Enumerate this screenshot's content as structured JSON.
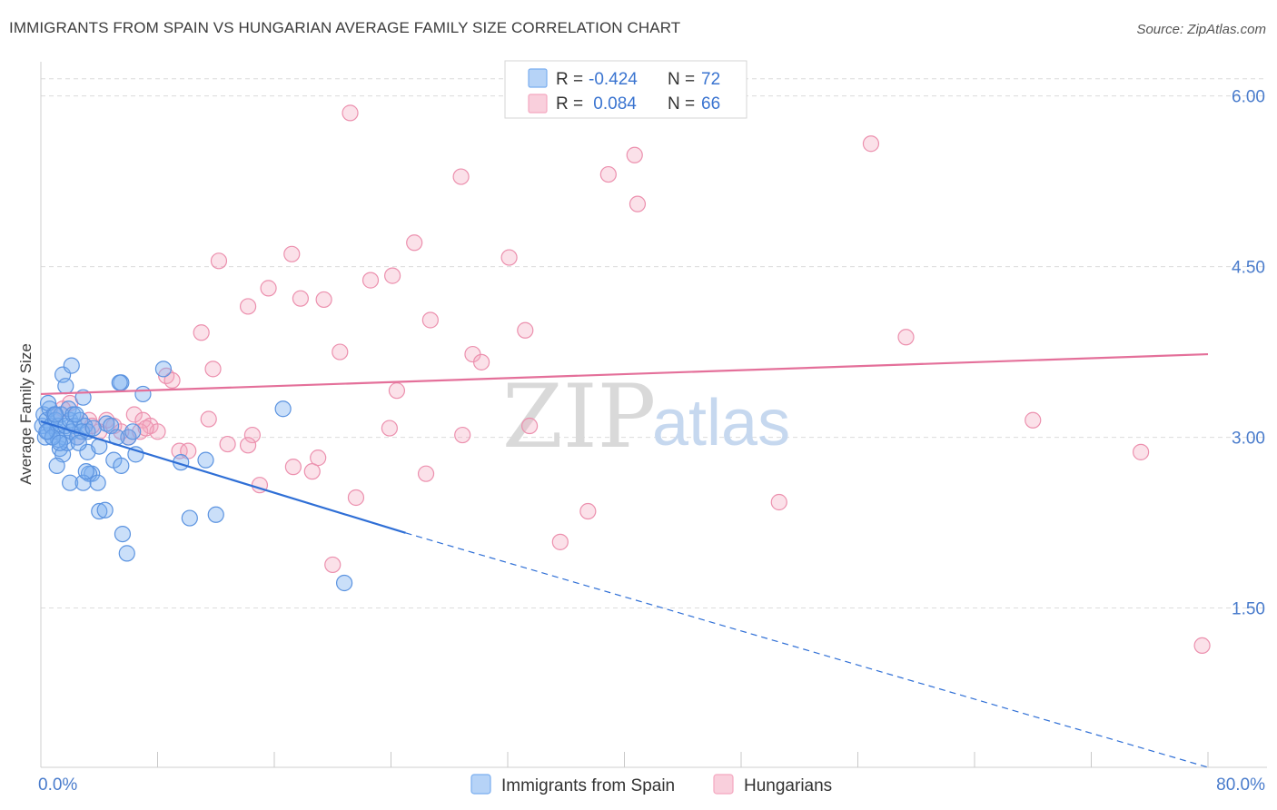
{
  "title": "IMMIGRANTS FROM SPAIN VS HUNGARIAN AVERAGE FAMILY SIZE CORRELATION CHART",
  "source": "Source: ZipAtlas.com",
  "watermark": {
    "zip": "ZIP",
    "atlas": "atlas"
  },
  "legend": {
    "r_label": "R =",
    "n_label": "N =",
    "rows": [
      {
        "r": "-0.424",
        "n": "72",
        "color": "#7aaef0"
      },
      {
        "r": " 0.084",
        "n": "66",
        "color": "#f4a8c0"
      }
    ]
  },
  "chart_data": {
    "type": "scatter",
    "title": "IMMIGRANTS FROM SPAIN VS HUNGARIAN AVERAGE FAMILY SIZE CORRELATION CHART",
    "xlabel": "",
    "ylabel": "Average Family Size",
    "xlim": [
      0,
      80
    ],
    "ylim": [
      0.1,
      6.3
    ],
    "x_tick_labels": [
      "0.0%",
      "80.0%"
    ],
    "y_ticks": [
      1.5,
      3.0,
      4.5,
      6.0
    ],
    "y_tick_labels": [
      "1.50",
      "3.00",
      "4.50",
      "6.00"
    ],
    "grid": "horizontal dashed",
    "legend_position": "top-center",
    "series": [
      {
        "name": "Immigrants from Spain",
        "color": "#7aaef0",
        "line_color": "#2f6fd6",
        "trend": {
          "x0": 0,
          "y0": 3.14,
          "x1": 25,
          "y1": 2.16,
          "dash_to_x": 80,
          "dash_to_y": 0.1
        },
        "points": [
          [
            0.1,
            3.1
          ],
          [
            0.2,
            3.2
          ],
          [
            0.3,
            3.0
          ],
          [
            0.4,
            3.15
          ],
          [
            0.5,
            3.05
          ],
          [
            0.6,
            3.25
          ],
          [
            0.7,
            3.1
          ],
          [
            0.8,
            3.0
          ],
          [
            0.9,
            3.2
          ],
          [
            1.0,
            3.15
          ],
          [
            1.1,
            3.05
          ],
          [
            1.2,
            3.1
          ],
          [
            1.3,
            2.9
          ],
          [
            1.4,
            3.2
          ],
          [
            1.5,
            2.85
          ],
          [
            1.6,
            3.0
          ],
          [
            1.7,
            3.1
          ],
          [
            1.8,
            2.95
          ],
          [
            1.9,
            3.25
          ],
          [
            2.0,
            3.15
          ],
          [
            2.1,
            3.05
          ],
          [
            2.2,
            3.2
          ],
          [
            2.3,
            3.1
          ],
          [
            2.5,
            3.0
          ],
          [
            2.7,
            3.15
          ],
          [
            3.0,
            3.1
          ],
          [
            3.2,
            3.05
          ],
          [
            1.5,
            3.55
          ],
          [
            1.7,
            3.45
          ],
          [
            2.1,
            3.63
          ],
          [
            2.9,
            3.35
          ],
          [
            3.2,
            2.87
          ],
          [
            3.5,
            2.68
          ],
          [
            4.0,
            2.92
          ],
          [
            4.5,
            3.12
          ],
          [
            5.0,
            2.8
          ],
          [
            5.5,
            2.75
          ],
          [
            6.0,
            3.0
          ],
          [
            6.5,
            2.85
          ],
          [
            7.0,
            3.38
          ],
          [
            8.4,
            3.6
          ],
          [
            9.6,
            2.78
          ],
          [
            11.3,
            2.8
          ],
          [
            16.6,
            3.25
          ],
          [
            5.5,
            3.48
          ],
          [
            5.4,
            3.48
          ],
          [
            3.3,
            2.68
          ],
          [
            2.0,
            2.6
          ],
          [
            2.9,
            2.6
          ],
          [
            3.9,
            2.6
          ],
          [
            4.0,
            2.35
          ],
          [
            4.4,
            2.36
          ],
          [
            5.6,
            2.15
          ],
          [
            5.9,
            1.98
          ],
          [
            10.2,
            2.29
          ],
          [
            12.0,
            2.32
          ],
          [
            20.8,
            1.72
          ],
          [
            1.2,
            2.98
          ],
          [
            2.8,
            3.05
          ],
          [
            3.1,
            2.7
          ],
          [
            1.1,
            2.75
          ],
          [
            0.5,
            3.3
          ],
          [
            1.0,
            3.2
          ],
          [
            2.4,
            3.2
          ],
          [
            4.8,
            3.1
          ],
          [
            6.3,
            3.05
          ],
          [
            0.8,
            3.0
          ],
          [
            1.3,
            2.95
          ],
          [
            3.6,
            3.08
          ],
          [
            2.6,
            2.95
          ],
          [
            0.4,
            3.05
          ],
          [
            5.2,
            3.0
          ]
        ]
      },
      {
        "name": "Hungarians",
        "color": "#f4a8c0",
        "line_color": "#e4709a",
        "trend": {
          "x0": 0,
          "y0": 3.38,
          "x1": 80,
          "y1": 3.73
        },
        "points": [
          [
            21.2,
            5.85
          ],
          [
            56.9,
            5.58
          ],
          [
            28.8,
            5.29
          ],
          [
            38.9,
            5.31
          ],
          [
            40.7,
            5.48
          ],
          [
            40.9,
            5.05
          ],
          [
            25.6,
            4.71
          ],
          [
            17.2,
            4.61
          ],
          [
            32.1,
            4.58
          ],
          [
            12.2,
            4.55
          ],
          [
            24.1,
            4.42
          ],
          [
            22.6,
            4.38
          ],
          [
            15.6,
            4.31
          ],
          [
            17.8,
            4.22
          ],
          [
            19.4,
            4.21
          ],
          [
            14.2,
            4.15
          ],
          [
            26.7,
            4.03
          ],
          [
            11.0,
            3.92
          ],
          [
            33.2,
            3.94
          ],
          [
            59.3,
            3.88
          ],
          [
            20.5,
            3.75
          ],
          [
            29.6,
            3.73
          ],
          [
            30.2,
            3.66
          ],
          [
            11.8,
            3.6
          ],
          [
            8.6,
            3.54
          ],
          [
            9.0,
            3.5
          ],
          [
            24.4,
            3.41
          ],
          [
            11.5,
            3.16
          ],
          [
            14.5,
            3.02
          ],
          [
            23.9,
            3.08
          ],
          [
            28.9,
            3.02
          ],
          [
            33.5,
            3.1
          ],
          [
            6.4,
            3.2
          ],
          [
            7.0,
            3.15
          ],
          [
            7.5,
            3.1
          ],
          [
            8.0,
            3.05
          ],
          [
            2.0,
            3.3
          ],
          [
            3.3,
            3.15
          ],
          [
            4.0,
            3.05
          ],
          [
            5.0,
            3.1
          ],
          [
            6.0,
            3.0
          ],
          [
            9.5,
            2.88
          ],
          [
            10.1,
            2.88
          ],
          [
            12.8,
            2.94
          ],
          [
            14.2,
            2.93
          ],
          [
            17.3,
            2.74
          ],
          [
            18.6,
            2.7
          ],
          [
            19.0,
            2.82
          ],
          [
            15.0,
            2.58
          ],
          [
            26.4,
            2.68
          ],
          [
            21.6,
            2.47
          ],
          [
            37.5,
            2.35
          ],
          [
            35.6,
            2.08
          ],
          [
            50.6,
            2.43
          ],
          [
            20.0,
            1.88
          ],
          [
            68.0,
            3.15
          ],
          [
            75.4,
            2.87
          ],
          [
            79.6,
            1.17
          ],
          [
            1.5,
            3.25
          ],
          [
            2.5,
            3.0
          ],
          [
            3.5,
            3.1
          ],
          [
            4.5,
            3.15
          ],
          [
            5.5,
            3.05
          ],
          [
            6.8,
            3.05
          ],
          [
            7.2,
            3.08
          ],
          [
            1.0,
            3.2
          ]
        ]
      }
    ]
  },
  "bottom_legend": [
    {
      "label": "Immigrants from Spain",
      "color": "#7aaef0"
    },
    {
      "label": "Hungarians",
      "color": "#f4a8c0"
    }
  ]
}
